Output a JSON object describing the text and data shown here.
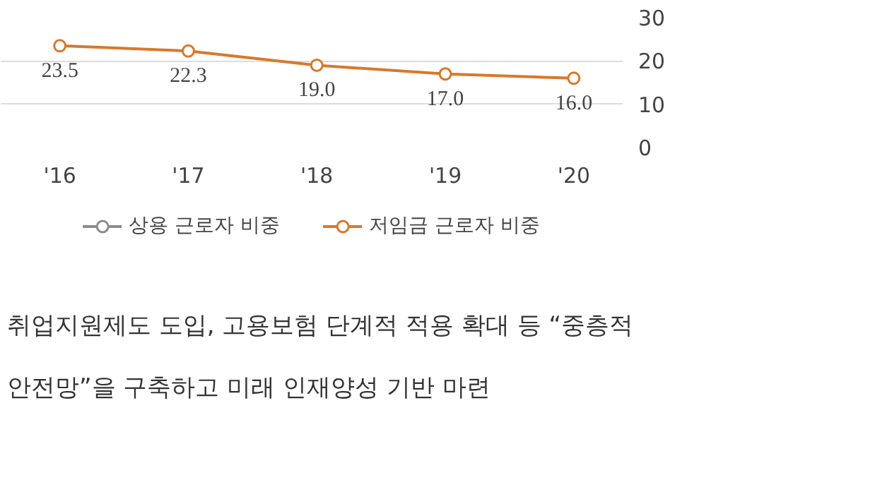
{
  "chart_data": {
    "type": "line",
    "categories": [
      "'16",
      "'17",
      "'18",
      "'19",
      "'20"
    ],
    "series": [
      {
        "name": "상용 근로자 비중",
        "color": "#8c8c8c",
        "values": [
          null,
          null,
          null,
          null,
          null
        ]
      },
      {
        "name": "저임금 근로자 비중",
        "color": "#d9782b",
        "values": [
          23.5,
          22.3,
          19.0,
          17.0,
          16.0
        ],
        "value_labels": [
          "23.5",
          "22.3",
          "19.0",
          "17.0",
          "16.0"
        ]
      }
    ],
    "ylim": [
      0,
      30
    ],
    "yticks": [
      0,
      10,
      20,
      30
    ],
    "grid": "y",
    "legend": "bottom",
    "marker": "circle",
    "line_style": "solid",
    "annotations": [
      "취업지원제도 도입, 고용보험 단계적 적용 확대 등 “중층적",
      "안전망”을 구축하고 미래 인재양성 기반 마련"
    ]
  }
}
